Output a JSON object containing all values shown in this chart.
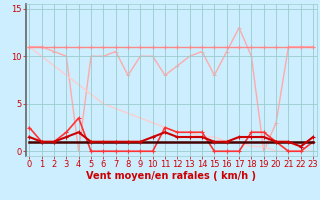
{
  "bg_color": "#cceeff",
  "grid_color": "#99cccc",
  "xlabel": "Vent moyen/en rafales ( km/h )",
  "xlabel_color": "#cc0000",
  "xlabel_fontsize": 7,
  "tick_color": "#cc0000",
  "tick_fontsize": 6,
  "yticks": [
    0,
    5,
    10,
    15
  ],
  "xticks": [
    0,
    1,
    2,
    3,
    4,
    5,
    6,
    7,
    8,
    9,
    10,
    11,
    12,
    13,
    14,
    15,
    16,
    17,
    18,
    19,
    20,
    21,
    22,
    23
  ],
  "xlim": [
    -0.3,
    23.3
  ],
  "ylim": [
    -0.5,
    15.5
  ],
  "series": [
    {
      "x": [
        0,
        1,
        2,
        3,
        4,
        5,
        6,
        7,
        8,
        9,
        10,
        11,
        12,
        13,
        14,
        15,
        16,
        17,
        18,
        19,
        20,
        21,
        22,
        23
      ],
      "y": [
        11,
        11,
        11,
        11,
        11,
        11,
        11,
        11,
        11,
        11,
        11,
        11,
        11,
        11,
        11,
        11,
        11,
        11,
        11,
        11,
        11,
        11,
        11,
        11
      ],
      "color": "#ff8888",
      "lw": 1.0,
      "marker": "+",
      "ms": 3,
      "mew": 0.8,
      "zorder": 2,
      "ls": "-"
    },
    {
      "x": [
        0,
        1,
        2,
        3,
        4,
        5,
        6,
        7,
        8,
        9,
        10,
        11,
        12,
        13,
        14,
        15,
        16,
        17,
        18,
        19,
        20,
        21,
        22,
        23
      ],
      "y": [
        11,
        11,
        10.5,
        10,
        0,
        10,
        10,
        10.5,
        8,
        10,
        10,
        8,
        9,
        10,
        10.5,
        8,
        10.5,
        13,
        10,
        0,
        3,
        11,
        11,
        11
      ],
      "color": "#ffaaaa",
      "lw": 1.0,
      "marker": "+",
      "ms": 3,
      "mew": 0.7,
      "zorder": 1,
      "ls": "-"
    },
    {
      "x": [
        0,
        1,
        2,
        3,
        4,
        5,
        6,
        7,
        8,
        9,
        10,
        11,
        12,
        13,
        14,
        15,
        16,
        17,
        18,
        19,
        20,
        21,
        22,
        23
      ],
      "y": [
        11,
        10,
        9,
        8,
        7,
        6,
        5,
        4.5,
        4,
        3.5,
        3,
        2.5,
        2,
        2,
        1.5,
        1.5,
        1,
        1,
        0.5,
        0.5,
        0,
        0,
        0,
        0
      ],
      "color": "#ffcccc",
      "lw": 1.0,
      "marker": null,
      "ms": 0,
      "mew": 0,
      "zorder": 1,
      "ls": "-"
    },
    {
      "x": [
        0,
        1,
        2,
        3,
        4,
        5,
        6,
        7,
        8,
        9,
        10,
        11,
        12,
        13,
        14,
        15,
        16,
        17,
        18,
        19,
        20,
        21,
        22,
        23
      ],
      "y": [
        2.5,
        1,
        1,
        2,
        3.5,
        0,
        0,
        0,
        0,
        0,
        0,
        2.5,
        2,
        2,
        2,
        0,
        0,
        0,
        2,
        2,
        1,
        0,
        0,
        1
      ],
      "color": "#ff3333",
      "lw": 1.2,
      "marker": "+",
      "ms": 3,
      "mew": 0.8,
      "zorder": 3,
      "ls": "-"
    },
    {
      "x": [
        0,
        1,
        2,
        3,
        4,
        5,
        6,
        7,
        8,
        9,
        10,
        11,
        12,
        13,
        14,
        15,
        16,
        17,
        18,
        19,
        20,
        21,
        22,
        23
      ],
      "y": [
        1,
        1,
        1,
        1,
        1,
        1,
        1,
        1,
        1,
        1,
        1,
        1,
        1,
        1,
        1,
        1,
        1,
        1,
        1,
        1,
        1,
        1,
        1,
        1
      ],
      "color": "#440000",
      "lw": 1.8,
      "marker": null,
      "ms": 0,
      "mew": 0,
      "zorder": 4,
      "ls": "-"
    },
    {
      "x": [
        0,
        1,
        2,
        3,
        4,
        5,
        6,
        7,
        8,
        9,
        10,
        11,
        12,
        13,
        14,
        15,
        16,
        17,
        18,
        19,
        20,
        21,
        22,
        23
      ],
      "y": [
        1.5,
        1,
        1,
        1.5,
        2,
        1,
        1,
        1,
        1,
        1,
        1.5,
        2,
        1.5,
        1.5,
        1.5,
        1,
        1,
        1.5,
        1.5,
        1.5,
        1,
        1,
        0.5,
        1.5
      ],
      "color": "#cc0000",
      "lw": 1.5,
      "marker": "+",
      "ms": 3,
      "mew": 0.8,
      "zorder": 5,
      "ls": "-"
    }
  ]
}
